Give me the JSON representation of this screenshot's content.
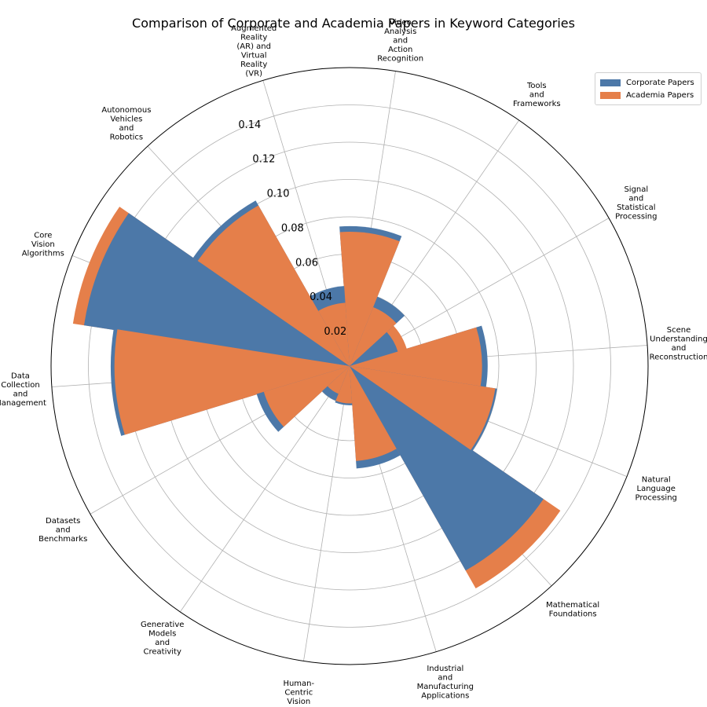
{
  "chart_data": {
    "type": "polar-bar",
    "title": "Comparison of Corporate and Academia Papers in Keyword Categories",
    "radial_ticks": [
      "0.02",
      "0.04",
      "0.06",
      "0.08",
      "0.10",
      "0.12",
      "0.14"
    ],
    "rlim": [
      0,
      0.16
    ],
    "grid": true,
    "legend_position": "top-right",
    "colors": {
      "corporate": "#4c78a8",
      "academia": "#e57f4a"
    },
    "categories": [
      "Scene\nUnderstanding\nand\nReconstruction",
      "Signal\nand\nStatistical\nProcessing",
      "Tools\nand\nFrameworks",
      "Video\nAnalysis\nand\nAction\nRecognition",
      "Augmented\nReality\n(AR) and\nVirtual\nReality\n(VR)",
      "Autonomous\nVehicles\nand\nRobotics",
      "Core\nVision\nAlgorithms",
      "Data\nCollection\nand\nManagement",
      "Datasets\nand\nBenchmarks",
      "Generative\nModels\nand\nCreativity",
      "Human-\nCentric\nVision",
      "Industrial\nand\nManufacturing\nApplications",
      "Mathematical\nFoundations",
      "Natural\nLanguage\nProcessing"
    ],
    "series": [
      {
        "name": "Corporate Papers",
        "values": [
          0.074,
          0.027,
          0.04,
          0.075,
          0.043,
          0.102,
          0.144,
          0.128,
          0.052,
          0.02,
          0.021,
          0.055,
          0.126,
          0.08
        ]
      },
      {
        "name": "Academia Papers",
        "values": [
          0.071,
          0.032,
          0.034,
          0.072,
          0.034,
          0.099,
          0.15,
          0.126,
          0.048,
          0.016,
          0.02,
          0.051,
          0.137,
          0.079
        ]
      }
    ]
  }
}
